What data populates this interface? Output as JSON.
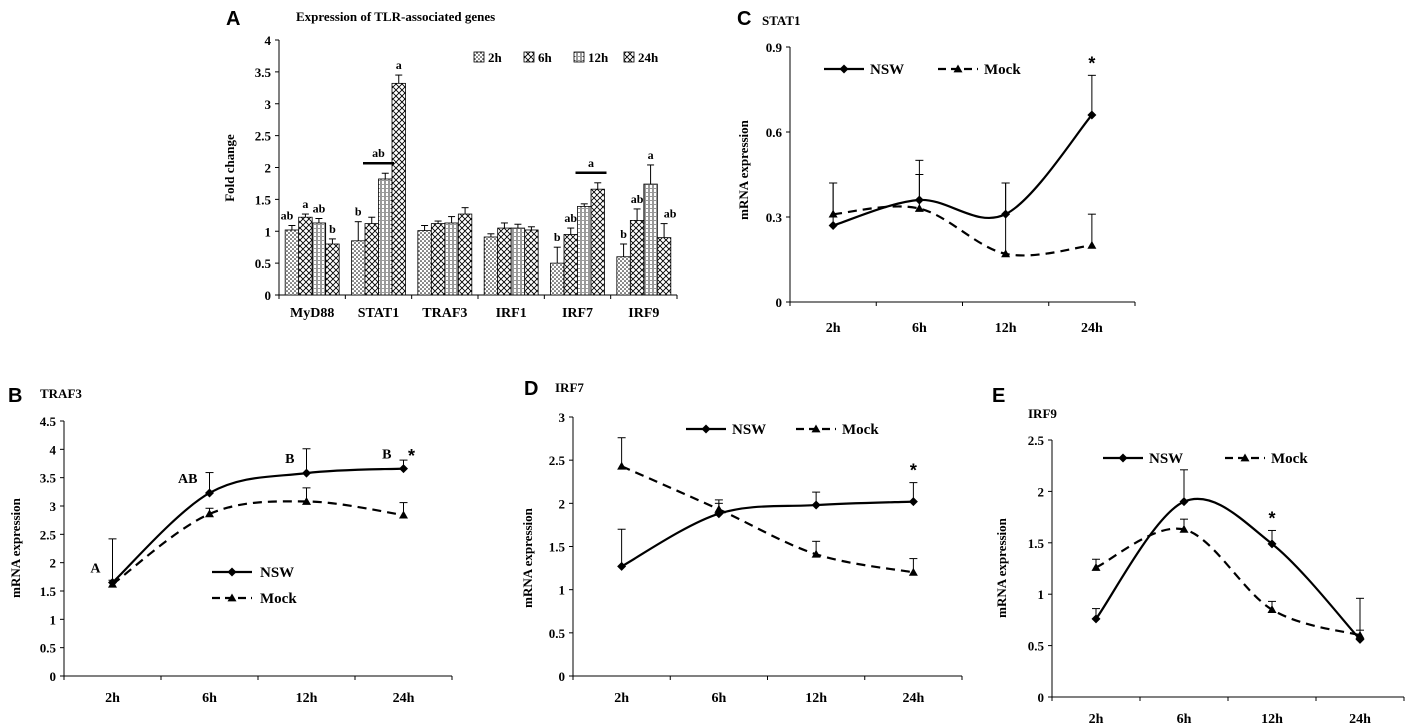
{
  "chart_data": [
    {
      "panel": "A",
      "type": "bar",
      "title": "Expression of TLR-associated genes",
      "xlabel": "",
      "ylabel": "Fold change",
      "ylim": [
        0,
        4
      ],
      "yticks": [
        "0",
        "0.5",
        "1",
        "1.5",
        "2",
        "2.5",
        "3",
        "3.5",
        "4"
      ],
      "grid": false,
      "legend_position": "top-right",
      "categories": [
        "MyD88",
        "STAT1",
        "TRAF3",
        "IRF1",
        "IRF7",
        "IRF9"
      ],
      "series": [
        {
          "name": "2h",
          "pattern": "dots",
          "values": [
            1.02,
            0.85,
            1.01,
            0.91,
            0.5,
            0.6
          ],
          "errors": [
            0.07,
            0.3,
            0.08,
            0.05,
            0.25,
            0.2
          ],
          "labels": [
            "ab",
            "b",
            "",
            "",
            "b",
            "b"
          ]
        },
        {
          "name": "6h",
          "pattern": "cross",
          "values": [
            1.22,
            1.12,
            1.12,
            1.05,
            0.95,
            1.17
          ],
          "errors": [
            0.05,
            0.1,
            0.04,
            0.08,
            0.1,
            0.18
          ],
          "labels": [
            "a",
            "",
            "",
            "",
            "ab",
            "ab"
          ]
        },
        {
          "name": "12h",
          "pattern": "vertical",
          "values": [
            1.13,
            1.82,
            1.13,
            1.05,
            1.39,
            1.74
          ],
          "errors": [
            0.07,
            0.09,
            0.1,
            0.06,
            0.04,
            0.3
          ],
          "labels": [
            "ab",
            "",
            "",
            "",
            "",
            "a"
          ]
        },
        {
          "name": "24h",
          "pattern": "cross",
          "values": [
            0.8,
            3.32,
            1.27,
            1.02,
            1.66,
            0.9
          ],
          "errors": [
            0.08,
            0.13,
            0.1,
            0.05,
            0.1,
            0.22
          ],
          "labels": [
            "b",
            "a",
            "",
            "",
            "",
            "ab"
          ]
        }
      ],
      "group_annotations": [
        {
          "category": "STAT1",
          "from_series": 1,
          "to_series": 2,
          "label": "ab"
        },
        {
          "category": "IRF7",
          "from_series": 2,
          "to_series": 3,
          "label": "a"
        }
      ]
    },
    {
      "panel": "C",
      "type": "line",
      "title": "STAT1",
      "xlabel": "",
      "ylabel": "mRNA expression",
      "ylim": [
        0,
        0.9
      ],
      "yticks": [
        "0",
        "0.3",
        "0.6",
        "0.9"
      ],
      "categories": [
        "2h",
        "6h",
        "12h",
        "24h"
      ],
      "legend_position": "top-left",
      "series": [
        {
          "name": "NSW",
          "style": "solid-diamond",
          "values": [
            0.27,
            0.36,
            0.31,
            0.66
          ],
          "errors": [
            0.15,
            0.14,
            0.11,
            0.14
          ]
        },
        {
          "name": "Mock",
          "style": "dashed-triangle",
          "values": [
            0.31,
            0.33,
            0.17,
            0.2
          ],
          "errors": [
            0.11,
            0.12,
            0.25,
            0.11
          ]
        }
      ],
      "annotations": [
        {
          "category": "24h",
          "label": "*"
        }
      ]
    },
    {
      "panel": "B",
      "type": "line",
      "title": "TRAF3",
      "xlabel": "",
      "ylabel": "mRNA expression",
      "ylim": [
        0,
        4.5
      ],
      "yticks": [
        "0",
        "0.5",
        "1",
        "1.5",
        "2",
        "2.5",
        "3",
        "3.5",
        "4",
        "4.5"
      ],
      "categories": [
        "2h",
        "6h",
        "12h",
        "24h"
      ],
      "legend_position": "center-right",
      "series": [
        {
          "name": "NSW",
          "style": "solid-diamond",
          "values": [
            1.65,
            3.23,
            3.58,
            3.66
          ],
          "errors": [
            0.77,
            0.36,
            0.43,
            0.15
          ]
        },
        {
          "name": "Mock",
          "style": "dashed-triangle",
          "values": [
            1.62,
            2.86,
            3.08,
            2.84
          ],
          "errors": [
            0.07,
            0.1,
            0.24,
            0.22
          ]
        }
      ],
      "point_labels": [
        "A",
        "AB",
        "B",
        "B"
      ],
      "annotations": [
        {
          "category": "24h",
          "label": "*"
        }
      ]
    },
    {
      "panel": "D",
      "type": "line",
      "title": "IRF7",
      "xlabel": "",
      "ylabel": "mRNA expression",
      "ylim": [
        0,
        3
      ],
      "yticks": [
        "0",
        "0.5",
        "1",
        "1.5",
        "2",
        "2.5",
        "3"
      ],
      "categories": [
        "2h",
        "6h",
        "12h",
        "24h"
      ],
      "legend_position": "top-right",
      "series": [
        {
          "name": "NSW",
          "style": "solid-diamond",
          "values": [
            1.27,
            1.88,
            1.98,
            2.02
          ],
          "errors": [
            0.43,
            0.12,
            0.15,
            0.22
          ]
        },
        {
          "name": "Mock",
          "style": "dashed-triangle",
          "values": [
            2.43,
            1.93,
            1.41,
            1.2
          ],
          "errors": [
            0.33,
            0.11,
            0.15,
            0.16
          ]
        }
      ],
      "annotations": [
        {
          "category": "24h",
          "label": "*"
        }
      ]
    },
    {
      "panel": "E",
      "type": "line",
      "title": "IRF9",
      "xlabel": "",
      "ylabel": "mRNA expression",
      "ylim": [
        0,
        2.5
      ],
      "yticks": [
        "0",
        "0.5",
        "1",
        "1.5",
        "2",
        "2.5"
      ],
      "categories": [
        "2h",
        "6h",
        "12h",
        "24h"
      ],
      "legend_position": "top-right",
      "series": [
        {
          "name": "NSW",
          "style": "solid-diamond",
          "values": [
            0.76,
            1.9,
            1.49,
            0.56
          ],
          "errors": [
            0.1,
            0.31,
            0.13,
            0.4
          ]
        },
        {
          "name": "Mock",
          "style": "dashed-triangle",
          "values": [
            1.26,
            1.63,
            0.85,
            0.6
          ],
          "errors": [
            0.08,
            0.1,
            0.08,
            0.05
          ]
        }
      ],
      "annotations": [
        {
          "category": "12h",
          "label": "*"
        }
      ]
    }
  ]
}
